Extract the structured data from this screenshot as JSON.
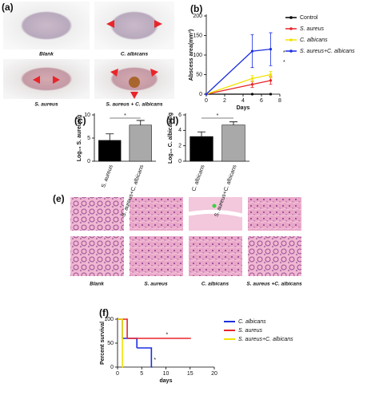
{
  "figure": {
    "panel_labels": [
      "(a)",
      "(b)",
      "(c)",
      "(d)",
      "(e)",
      "(f)"
    ],
    "photo_labels": [
      "Blank",
      "C. albicans",
      "S. aureus",
      "S. aureus + C. albicans"
    ],
    "histology_labels": [
      "Blank",
      "S. aureus",
      "C. albicans",
      "S. aureus +C. albicans"
    ]
  },
  "chart_data": [
    {
      "type": "line",
      "x_label": "Days",
      "y_label": "Abscess area(mm²)",
      "x": [
        0,
        5,
        7
      ],
      "xlim": [
        0,
        8
      ],
      "xticks": [
        0,
        2,
        4,
        6,
        8
      ],
      "ylim": [
        0,
        200
      ],
      "yticks": [
        0,
        50,
        100,
        150,
        200
      ],
      "series": [
        {
          "name": "Control",
          "color": "#000000",
          "values": [
            0,
            0,
            0
          ],
          "errors": [
            0,
            0,
            0
          ]
        },
        {
          "name": "S. aureus",
          "color": "#e8252a",
          "values": [
            0,
            25,
            35
          ],
          "errors": [
            0,
            8,
            10
          ]
        },
        {
          "name": "C. albicans",
          "color": "#f2e200",
          "values": [
            0,
            40,
            50
          ],
          "errors": [
            0,
            8,
            8
          ]
        },
        {
          "name": "S. aureus+C. albicans",
          "color": "#1c2fe0",
          "values": [
            0,
            110,
            115
          ],
          "errors": [
            0,
            42,
            42
          ]
        }
      ],
      "annotations": [
        "*",
        "*"
      ]
    },
    {
      "type": "bar",
      "y_label": "Log₁₀ S. aureus/g",
      "categories": [
        "S. aureus",
        "S. aureus+C. albicans"
      ],
      "colors": [
        "#000000",
        "#a9a9a9"
      ],
      "values": [
        4.5,
        7.8
      ],
      "errors": [
        1.4,
        1.0
      ],
      "ylim": [
        0,
        10
      ],
      "yticks": [
        0,
        5,
        10
      ],
      "annotations": [
        "*"
      ]
    },
    {
      "type": "bar",
      "y_label": "Log₁₀ C. albicans/g",
      "categories": [
        "C. albicans",
        "S. aureus+C. albicans"
      ],
      "colors": [
        "#000000",
        "#a9a9a9"
      ],
      "values": [
        3.2,
        4.7
      ],
      "errors": [
        0.6,
        0.4
      ],
      "ylim": [
        0,
        6
      ],
      "yticks": [
        0,
        2,
        4,
        6
      ],
      "annotations": [
        "*"
      ]
    },
    {
      "type": "step",
      "x_label": "days",
      "y_label": "Percent survival",
      "xlim": [
        0,
        20
      ],
      "xticks": [
        0,
        5,
        10,
        15,
        20
      ],
      "ylim": [
        0,
        100
      ],
      "yticks": [
        0,
        50,
        100
      ],
      "series": [
        {
          "name": "C. albicans",
          "color": "#1c2fe0",
          "x": [
            0,
            1,
            4,
            7
          ],
          "values": [
            100,
            60,
            40,
            0
          ]
        },
        {
          "name": "S. aureus",
          "color": "#e8252a",
          "x": [
            0,
            2,
            15
          ],
          "values": [
            100,
            60,
            60
          ]
        },
        {
          "name": "S. aureus+C. albicans",
          "color": "#f2e200",
          "x": [
            0,
            1
          ],
          "values": [
            100,
            0
          ]
        }
      ],
      "annotations": [
        "*",
        "*"
      ]
    }
  ]
}
